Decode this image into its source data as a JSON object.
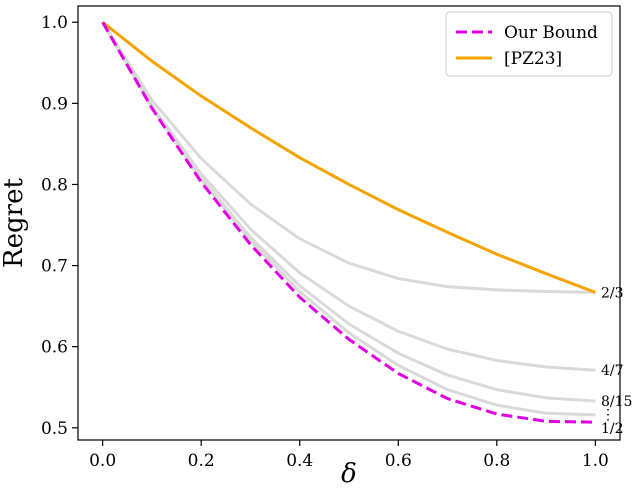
{
  "chart_data": {
    "type": "line",
    "title": "",
    "xlabel": "δ",
    "ylabel": "Regret",
    "xlim": [
      -0.05,
      1.05
    ],
    "ylim": [
      0.485,
      1.02
    ],
    "xticks": [
      0.0,
      0.2,
      0.4,
      0.6,
      0.8,
      1.0
    ],
    "xtick_labels": [
      "0.0",
      "0.2",
      "0.4",
      "0.6",
      "0.8",
      "1.0"
    ],
    "yticks": [
      0.5,
      0.6,
      0.7,
      0.8,
      0.9,
      1.0
    ],
    "ytick_labels": [
      "0.5",
      "0.6",
      "0.7",
      "0.8",
      "0.9",
      "1.0"
    ],
    "grid": false,
    "legend": {
      "placement": "top-right",
      "entries": [
        "Our Bound",
        "[PZ23]"
      ]
    },
    "x": [
      0.0,
      0.1,
      0.2,
      0.3,
      0.4,
      0.5,
      0.6,
      0.7,
      0.8,
      0.9,
      1.0
    ],
    "series": [
      {
        "name": "[PZ23]",
        "color": "#f5a300",
        "style": "solid",
        "width": 3,
        "values": [
          1.0,
          0.952,
          0.909,
          0.87,
          0.833,
          0.8,
          0.769,
          0.741,
          0.714,
          0.69,
          0.667
        ]
      },
      {
        "name": "",
        "color": "#d9d9d9",
        "style": "solid",
        "width": 3,
        "values": [
          1.0,
          0.904,
          0.832,
          0.776,
          0.733,
          0.703,
          0.684,
          0.674,
          0.67,
          0.668,
          0.667
        ]
      },
      {
        "name": "",
        "color": "#d9d9d9",
        "style": "solid",
        "width": 3,
        "values": [
          1.0,
          0.897,
          0.813,
          0.745,
          0.691,
          0.65,
          0.619,
          0.597,
          0.583,
          0.575,
          0.571
        ]
      },
      {
        "name": "",
        "color": "#d9d9d9",
        "style": "solid",
        "width": 3,
        "values": [
          1.0,
          0.896,
          0.808,
          0.735,
          0.675,
          0.628,
          0.592,
          0.565,
          0.547,
          0.537,
          0.533
        ]
      },
      {
        "name": "",
        "color": "#d9d9d9",
        "style": "solid",
        "width": 3,
        "values": [
          1.0,
          0.895,
          0.806,
          0.731,
          0.668,
          0.617,
          0.577,
          0.547,
          0.528,
          0.518,
          0.516
        ]
      },
      {
        "name": "Our Bound",
        "color": "#e000e0",
        "style": "dashed",
        "width": 3,
        "values": [
          1.0,
          0.894,
          0.803,
          0.726,
          0.661,
          0.609,
          0.567,
          0.536,
          0.517,
          0.508,
          0.507
        ]
      }
    ],
    "end_labels": [
      {
        "text": "2/3",
        "y": 0.667
      },
      {
        "text": "4/7",
        "y": 0.571
      },
      {
        "text": "8/15",
        "y": 0.533
      },
      {
        "text": "⋮",
        "y": 0.517
      },
      {
        "text": "1/2",
        "y": 0.5
      }
    ]
  }
}
